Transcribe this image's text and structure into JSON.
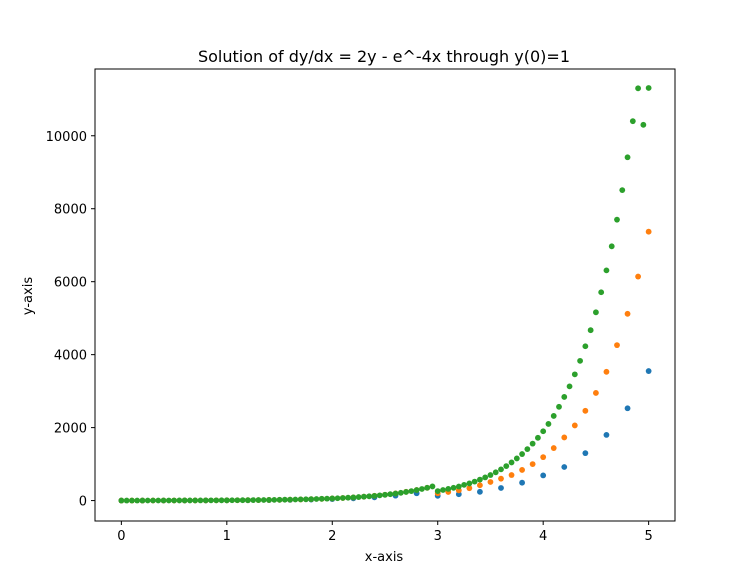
{
  "chart_data": {
    "type": "scatter",
    "title": "Solution of dy/dx = 2y - e^-4x through y(0)=1",
    "xlabel": "x-axis",
    "ylabel": "y-axis",
    "xlim": [
      -0.25,
      5.25
    ],
    "ylim": [
      -560,
      11830
    ],
    "xticks": [
      0,
      1,
      2,
      3,
      4,
      5
    ],
    "xtick_labels": [
      "0",
      "1",
      "2",
      "3",
      "4",
      "5"
    ],
    "yticks": [
      0,
      2000,
      4000,
      6000,
      8000,
      10000
    ],
    "ytick_labels": [
      "0",
      "2000",
      "4000",
      "6000",
      "8000",
      "10000"
    ],
    "grid": false,
    "series": [
      {
        "color": "#1f77b4",
        "x": [
          0,
          0.2,
          0.4,
          0.6,
          0.8,
          1.0,
          1.2,
          1.4,
          1.6,
          1.8,
          2.0,
          2.2,
          2.4,
          2.6,
          2.8,
          3.0,
          3.2,
          3.4,
          3.6,
          3.8,
          4.0,
          4.2,
          4.4,
          4.6,
          4.8,
          5.0
        ],
        "y": [
          1,
          1.2,
          1.7,
          2.5,
          3.7,
          5.5,
          8.2,
          12,
          18,
          27,
          41,
          60,
          90,
          135,
          200,
          130,
          175,
          240,
          345,
          490,
          690,
          920,
          1300,
          1800,
          2530,
          3550
        ]
      },
      {
        "color": "#ff7f0e",
        "x": [
          0,
          0.1,
          0.2,
          0.3,
          0.4,
          0.5,
          0.6,
          0.7,
          0.8,
          0.9,
          1.0,
          1.1,
          1.2,
          1.3,
          1.4,
          1.5,
          1.6,
          1.7,
          1.8,
          1.9,
          2.0,
          2.1,
          2.2,
          2.3,
          2.4,
          2.5,
          2.6,
          2.7,
          2.8,
          2.9,
          3.0,
          3.1,
          3.2,
          3.3,
          3.4,
          3.5,
          3.6,
          3.7,
          3.8,
          3.9,
          4.0,
          4.1,
          4.2,
          4.3,
          4.4,
          4.5,
          4.6,
          4.7,
          4.8,
          4.9,
          5.0
        ],
        "y": [
          1,
          1.1,
          1.3,
          1.6,
          2.0,
          2.5,
          3.1,
          3.8,
          4.7,
          5.8,
          7.2,
          8.9,
          11,
          13,
          17,
          20,
          25,
          31,
          38,
          47,
          58,
          71,
          87,
          107,
          131,
          160,
          195,
          240,
          290,
          350,
          200,
          235,
          280,
          340,
          420,
          510,
          600,
          700,
          840,
          1000,
          1190,
          1440,
          1730,
          2060,
          2460,
          2950,
          3530,
          4260,
          5120,
          6140,
          7370
        ]
      },
      {
        "color": "#2ca02c",
        "x": [
          0,
          0.05,
          0.1,
          0.15,
          0.2,
          0.25,
          0.3,
          0.35,
          0.4,
          0.45,
          0.5,
          0.55,
          0.6,
          0.65,
          0.7,
          0.75,
          0.8,
          0.85,
          0.9,
          0.95,
          1.0,
          1.05,
          1.1,
          1.15,
          1.2,
          1.25,
          1.3,
          1.35,
          1.4,
          1.45,
          1.5,
          1.55,
          1.6,
          1.65,
          1.7,
          1.75,
          1.8,
          1.85,
          1.9,
          1.95,
          2.0,
          2.05,
          2.1,
          2.15,
          2.2,
          2.25,
          2.3,
          2.35,
          2.4,
          2.45,
          2.5,
          2.55,
          2.6,
          2.65,
          2.7,
          2.75,
          2.8,
          2.85,
          2.9,
          2.95,
          3.0,
          3.05,
          3.1,
          3.15,
          3.2,
          3.25,
          3.3,
          3.35,
          3.4,
          3.45,
          3.5,
          3.55,
          3.6,
          3.65,
          3.7,
          3.75,
          3.8,
          3.85,
          3.9,
          3.95,
          4.0,
          4.05,
          4.1,
          4.15,
          4.2,
          4.25,
          4.3,
          4.35,
          4.4,
          4.45,
          4.5,
          4.55,
          4.6,
          4.65,
          4.7,
          4.75,
          4.8,
          4.85,
          4.9,
          4.95,
          5.0
        ],
        "y": [
          1,
          1.05,
          1.1,
          1.2,
          1.4,
          1.6,
          1.8,
          2.0,
          2.2,
          2.5,
          2.7,
          3.0,
          3.4,
          3.8,
          4.2,
          4.6,
          5.1,
          5.7,
          6.3,
          7.0,
          7.7,
          8.5,
          9.4,
          10,
          11,
          13,
          14,
          16,
          17,
          19,
          21,
          24,
          26,
          29,
          32,
          35,
          39,
          43,
          48,
          53,
          58,
          64,
          71,
          79,
          87,
          96,
          106,
          117,
          129,
          143,
          158,
          175,
          193,
          213,
          236,
          260,
          288,
          318,
          351,
          388,
          260,
          290,
          320,
          350,
          385,
          430,
          470,
          520,
          575,
          635,
          700,
          775,
          855,
          945,
          1045,
          1155,
          1275,
          1410,
          1560,
          1720,
          1900,
          2100,
          2320,
          2570,
          2840,
          3130,
          3460,
          3830,
          4230,
          4670,
          5160,
          5710,
          6310,
          6970,
          7700,
          8510,
          9410,
          10400,
          11300,
          10300,
          11310
        ]
      }
    ]
  }
}
